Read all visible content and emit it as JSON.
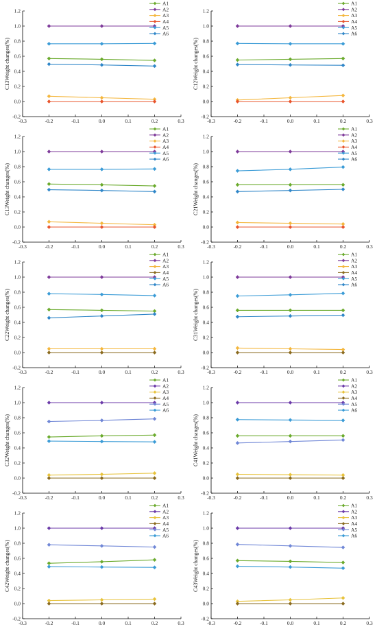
{
  "series_style": [
    {
      "name": "A1",
      "color": "#6aaa2c",
      "marker": "diamond"
    },
    {
      "name": "A2",
      "color": "#7e3a9a",
      "marker": "diamond"
    },
    {
      "name": "A3",
      "color": "#f4b63c",
      "marker": "diamond"
    },
    {
      "name": "A4",
      "color": "#e8542b",
      "marker": "diamond"
    },
    {
      "name": "A5",
      "color": "#3a9bd6",
      "marker": "diamond"
    },
    {
      "name": "A6",
      "color": "#2f86c8",
      "marker": "diamond"
    }
  ],
  "chart_data": [
    {
      "type": "line",
      "ylabel": "C13Weight changes(%)",
      "x": [
        -0.2,
        0.0,
        0.2
      ],
      "xlim": [
        -0.3,
        0.3
      ],
      "ylim": [
        -0.2,
        1.2
      ],
      "xticks": [
        "-0.3",
        "-0.2",
        "-0.1",
        "0.0",
        "0.1",
        "0.2",
        "0.3"
      ],
      "yticks": [
        "-0.2",
        "0.0",
        "0.2",
        "0.4",
        "0.6",
        "0.8",
        "1.0",
        "1.2"
      ],
      "legend_position": "top-right",
      "series": [
        {
          "name": "A1",
          "values": [
            0.57,
            0.56,
            0.545
          ],
          "color": "#6aaa2c"
        },
        {
          "name": "A2",
          "values": [
            1.0,
            1.0,
            1.0
          ],
          "color": "#7e3a9a"
        },
        {
          "name": "A3",
          "values": [
            0.07,
            0.05,
            0.03
          ],
          "color": "#f4b63c"
        },
        {
          "name": "A4",
          "values": [
            0.0,
            0.0,
            0.0
          ],
          "color": "#e8542b"
        },
        {
          "name": "A5",
          "values": [
            0.765,
            0.765,
            0.77
          ],
          "color": "#3a9bd6"
        },
        {
          "name": "A6",
          "values": [
            0.495,
            0.485,
            0.47
          ],
          "color": "#2f86c8"
        }
      ]
    },
    {
      "type": "line",
      "ylabel": "C12Weight changes(%)",
      "x": [
        -0.2,
        0.0,
        0.2
      ],
      "xlim": [
        -0.3,
        0.3
      ],
      "ylim": [
        -0.2,
        1.2
      ],
      "xticks": [
        "-0.3",
        "-0.2",
        "-0.1",
        "0.0",
        "0.1",
        "0.2",
        "0.3"
      ],
      "yticks": [
        "-0.2",
        "0.0",
        "0.2",
        "0.4",
        "0.6",
        "0.8",
        "1.0",
        "1.2"
      ],
      "legend_position": "top-right",
      "series": [
        {
          "name": "A1",
          "values": [
            0.55,
            0.56,
            0.57
          ],
          "color": "#6aaa2c"
        },
        {
          "name": "A2",
          "values": [
            1.0,
            1.0,
            1.0
          ],
          "color": "#7e3a9a"
        },
        {
          "name": "A3",
          "values": [
            0.02,
            0.05,
            0.08
          ],
          "color": "#f4b63c"
        },
        {
          "name": "A4",
          "values": [
            0.0,
            0.0,
            0.0
          ],
          "color": "#e8542b"
        },
        {
          "name": "A5",
          "values": [
            0.77,
            0.765,
            0.765
          ],
          "color": "#3a9bd6"
        },
        {
          "name": "A6",
          "values": [
            0.49,
            0.485,
            0.48
          ],
          "color": "#2f86c8"
        }
      ]
    },
    {
      "type": "line",
      "ylabel": "C13Weight changes(%)",
      "x": [
        -0.2,
        0.0,
        0.2
      ],
      "xlim": [
        -0.3,
        0.3
      ],
      "ylim": [
        -0.2,
        1.2
      ],
      "xticks": [
        "-0.3",
        "-0.2",
        "-0.1",
        "0.0",
        "0.1",
        "0.2",
        "0.3"
      ],
      "yticks": [
        "-0.2",
        "0.0",
        "0.2",
        "0.4",
        "0.6",
        "0.8",
        "1.0",
        "1.2"
      ],
      "legend_position": "top-right",
      "series": [
        {
          "name": "A1",
          "values": [
            0.57,
            0.56,
            0.545
          ],
          "color": "#6aaa2c"
        },
        {
          "name": "A2",
          "values": [
            1.0,
            1.0,
            1.0
          ],
          "color": "#7e3a9a"
        },
        {
          "name": "A3",
          "values": [
            0.07,
            0.05,
            0.03
          ],
          "color": "#f4b63c"
        },
        {
          "name": "A4",
          "values": [
            0.0,
            0.0,
            0.0
          ],
          "color": "#e8542b"
        },
        {
          "name": "A5",
          "values": [
            0.765,
            0.765,
            0.77
          ],
          "color": "#3a9bd6"
        },
        {
          "name": "A6",
          "values": [
            0.495,
            0.485,
            0.47
          ],
          "color": "#2f86c8"
        }
      ]
    },
    {
      "type": "line",
      "ylabel": "C21Weight changes(%)",
      "x": [
        -0.2,
        0.0,
        0.2
      ],
      "xlim": [
        -0.3,
        0.3
      ],
      "ylim": [
        -0.2,
        1.2
      ],
      "xticks": [
        "-0.3",
        "-0.2",
        "-0.1",
        "0.0",
        "0.1",
        "0.2",
        "0.3"
      ],
      "yticks": [
        "-0.2",
        "0.0",
        "0.2",
        "0.4",
        "0.6",
        "0.8",
        "1.0",
        "1.2"
      ],
      "legend_position": "top-right",
      "series": [
        {
          "name": "A1",
          "values": [
            0.56,
            0.56,
            0.56
          ],
          "color": "#6aaa2c"
        },
        {
          "name": "A2",
          "values": [
            1.0,
            1.0,
            1.0
          ],
          "color": "#7e3a9a"
        },
        {
          "name": "A3",
          "values": [
            0.06,
            0.05,
            0.04
          ],
          "color": "#f4b63c"
        },
        {
          "name": "A4",
          "values": [
            0.0,
            0.0,
            0.0
          ],
          "color": "#e8542b"
        },
        {
          "name": "A5",
          "values": [
            0.745,
            0.765,
            0.795
          ],
          "color": "#3a9bd6"
        },
        {
          "name": "A6",
          "values": [
            0.47,
            0.485,
            0.5
          ],
          "color": "#2f86c8"
        }
      ]
    },
    {
      "type": "line",
      "ylabel": "C22Weight changes(%)",
      "x": [
        -0.2,
        0.0,
        0.2
      ],
      "xlim": [
        -0.3,
        0.3
      ],
      "ylim": [
        -0.2,
        1.2
      ],
      "xticks": [
        "-0.3",
        "-0.2",
        "-0.1",
        "0.0",
        "0.1",
        "0.2",
        "0.3"
      ],
      "yticks": [
        "-0.2",
        "0.0",
        "0.2",
        "0.4",
        "0.6",
        "0.8",
        "1.0",
        "1.2"
      ],
      "legend_position": "top-right",
      "series": [
        {
          "name": "A1",
          "values": [
            0.57,
            0.56,
            0.55
          ],
          "color": "#6aaa2c"
        },
        {
          "name": "A2",
          "values": [
            1.0,
            1.0,
            1.0
          ],
          "color": "#7e3a9a"
        },
        {
          "name": "A3",
          "values": [
            0.05,
            0.05,
            0.05
          ],
          "color": "#f4b63c"
        },
        {
          "name": "A4",
          "values": [
            0.0,
            0.0,
            0.0
          ],
          "color": "#8a6a1e"
        },
        {
          "name": "A5",
          "values": [
            0.78,
            0.77,
            0.755
          ],
          "color": "#3a9bd6"
        },
        {
          "name": "A6",
          "values": [
            0.46,
            0.485,
            0.51
          ],
          "color": "#2f86c8"
        }
      ]
    },
    {
      "type": "line",
      "ylabel": "C31Weight changes(%)",
      "x": [
        -0.2,
        0.0,
        0.2
      ],
      "xlim": [
        -0.3,
        0.3
      ],
      "ylim": [
        -0.2,
        1.2
      ],
      "xticks": [
        "-0.3",
        "-0.2",
        "-0.1",
        "0.0",
        "0.1",
        "0.2",
        "0.3"
      ],
      "yticks": [
        "-0.2",
        "0.0",
        "0.2",
        "0.4",
        "0.6",
        "0.8",
        "1.0",
        "1.2"
      ],
      "legend_position": "top-right",
      "series": [
        {
          "name": "A1",
          "values": [
            0.56,
            0.56,
            0.56
          ],
          "color": "#6aaa2c"
        },
        {
          "name": "A2",
          "values": [
            1.0,
            1.0,
            1.0
          ],
          "color": "#7e3a9a"
        },
        {
          "name": "A3",
          "values": [
            0.06,
            0.05,
            0.04
          ],
          "color": "#f4b63c"
        },
        {
          "name": "A4",
          "values": [
            0.0,
            0.0,
            0.0
          ],
          "color": "#8a6a1e"
        },
        {
          "name": "A5",
          "values": [
            0.75,
            0.765,
            0.785
          ],
          "color": "#3a9bd6"
        },
        {
          "name": "A6",
          "values": [
            0.475,
            0.485,
            0.495
          ],
          "color": "#2f86c8"
        }
      ]
    },
    {
      "type": "line",
      "ylabel": "C32Weight changes(%)",
      "x": [
        -0.2,
        0.0,
        0.2
      ],
      "xlim": [
        -0.3,
        0.3
      ],
      "ylim": [
        -0.2,
        1.2
      ],
      "xticks": [
        "-0.3",
        "-0.2",
        "-0.1",
        "0.0",
        "0.1",
        "0.2",
        "0.3"
      ],
      "yticks": [
        "-0.2",
        "0.0",
        "0.2",
        "0.4",
        "0.6",
        "0.8",
        "1.0",
        "1.2"
      ],
      "legend_position": "top-right",
      "series": [
        {
          "name": "A1",
          "values": [
            0.545,
            0.56,
            0.57
          ],
          "color": "#6aaa2c"
        },
        {
          "name": "A2",
          "values": [
            1.0,
            1.0,
            1.0
          ],
          "color": "#6b3aa8"
        },
        {
          "name": "A3",
          "values": [
            0.04,
            0.05,
            0.065
          ],
          "color": "#e7c23a"
        },
        {
          "name": "A4",
          "values": [
            0.0,
            0.0,
            0.0
          ],
          "color": "#8a6a1e"
        },
        {
          "name": "A5",
          "values": [
            0.75,
            0.765,
            0.785
          ],
          "color": "#6f86d6"
        },
        {
          "name": "A6",
          "values": [
            0.49,
            0.485,
            0.48
          ],
          "color": "#3a9bd6"
        }
      ]
    },
    {
      "type": "line",
      "ylabel": "C41Weight changes(%)",
      "x": [
        -0.2,
        0.0,
        0.2
      ],
      "xlim": [
        -0.3,
        0.3
      ],
      "ylim": [
        -0.2,
        1.2
      ],
      "xticks": [
        "-0.3",
        "-0.2",
        "-0.1",
        "0.0",
        "0.1",
        "0.2",
        "0.3"
      ],
      "yticks": [
        "-0.2",
        "0.0",
        "0.2",
        "0.4",
        "0.6",
        "0.8",
        "1.0",
        "1.2"
      ],
      "legend_position": "top-right",
      "series": [
        {
          "name": "A1",
          "values": [
            0.56,
            0.56,
            0.56
          ],
          "color": "#6aaa2c"
        },
        {
          "name": "A2",
          "values": [
            1.0,
            1.0,
            1.0
          ],
          "color": "#6b3aa8"
        },
        {
          "name": "A3",
          "values": [
            0.05,
            0.045,
            0.04
          ],
          "color": "#e7c23a"
        },
        {
          "name": "A4",
          "values": [
            0.0,
            0.0,
            0.0
          ],
          "color": "#8a6a1e"
        },
        {
          "name": "A5",
          "values": [
            0.465,
            0.485,
            0.505
          ],
          "color": "#6f86d6"
        },
        {
          "name": "A6",
          "values": [
            0.775,
            0.77,
            0.765
          ],
          "color": "#3a9bd6"
        }
      ]
    },
    {
      "type": "line",
      "ylabel": "C42Weight changes(%)",
      "x": [
        -0.2,
        0.0,
        0.2
      ],
      "xlim": [
        -0.3,
        0.3
      ],
      "ylim": [
        -0.2,
        1.2
      ],
      "xticks": [
        "-0.3",
        "-0.2",
        "-0.1",
        "0.0",
        "0.1",
        "0.2",
        "0.3"
      ],
      "yticks": [
        "-0.2",
        "0.0",
        "0.2",
        "0.4",
        "0.6",
        "0.8",
        "1.0",
        "1.2"
      ],
      "legend_position": "top-right",
      "series": [
        {
          "name": "A1",
          "values": [
            0.535,
            0.555,
            0.58
          ],
          "color": "#6aaa2c"
        },
        {
          "name": "A2",
          "values": [
            1.0,
            1.0,
            1.0
          ],
          "color": "#6b3aa8"
        },
        {
          "name": "A3",
          "values": [
            0.04,
            0.05,
            0.06
          ],
          "color": "#e7c23a"
        },
        {
          "name": "A4",
          "values": [
            0.0,
            0.0,
            0.0
          ],
          "color": "#8a6a1e"
        },
        {
          "name": "A5",
          "values": [
            0.78,
            0.765,
            0.75
          ],
          "color": "#6f86d6"
        },
        {
          "name": "A6",
          "values": [
            0.49,
            0.485,
            0.48
          ],
          "color": "#3a9bd6"
        }
      ]
    },
    {
      "type": "line",
      "ylabel": "C43Weight changes(%)",
      "x": [
        -0.2,
        0.0,
        0.2
      ],
      "xlim": [
        -0.3,
        0.3
      ],
      "ylim": [
        -0.2,
        1.2
      ],
      "xticks": [
        "-0.3",
        "-0.2",
        "-0.1",
        "0.0",
        "0.1",
        "0.2",
        "0.3"
      ],
      "yticks": [
        "-0.2",
        "0.0",
        "0.2",
        "0.4",
        "0.6",
        "0.8",
        "1.0",
        "1.2"
      ],
      "legend_position": "top-right",
      "series": [
        {
          "name": "A1",
          "values": [
            0.57,
            0.56,
            0.545
          ],
          "color": "#6aaa2c"
        },
        {
          "name": "A2",
          "values": [
            1.0,
            1.0,
            1.0
          ],
          "color": "#6b3aa8"
        },
        {
          "name": "A3",
          "values": [
            0.03,
            0.05,
            0.075
          ],
          "color": "#e7c23a"
        },
        {
          "name": "A4",
          "values": [
            0.0,
            0.0,
            0.0
          ],
          "color": "#8a6a1e"
        },
        {
          "name": "A5",
          "values": [
            0.785,
            0.765,
            0.745
          ],
          "color": "#6f86d6"
        },
        {
          "name": "A6",
          "values": [
            0.495,
            0.485,
            0.47
          ],
          "color": "#3a9bd6"
        }
      ]
    }
  ]
}
